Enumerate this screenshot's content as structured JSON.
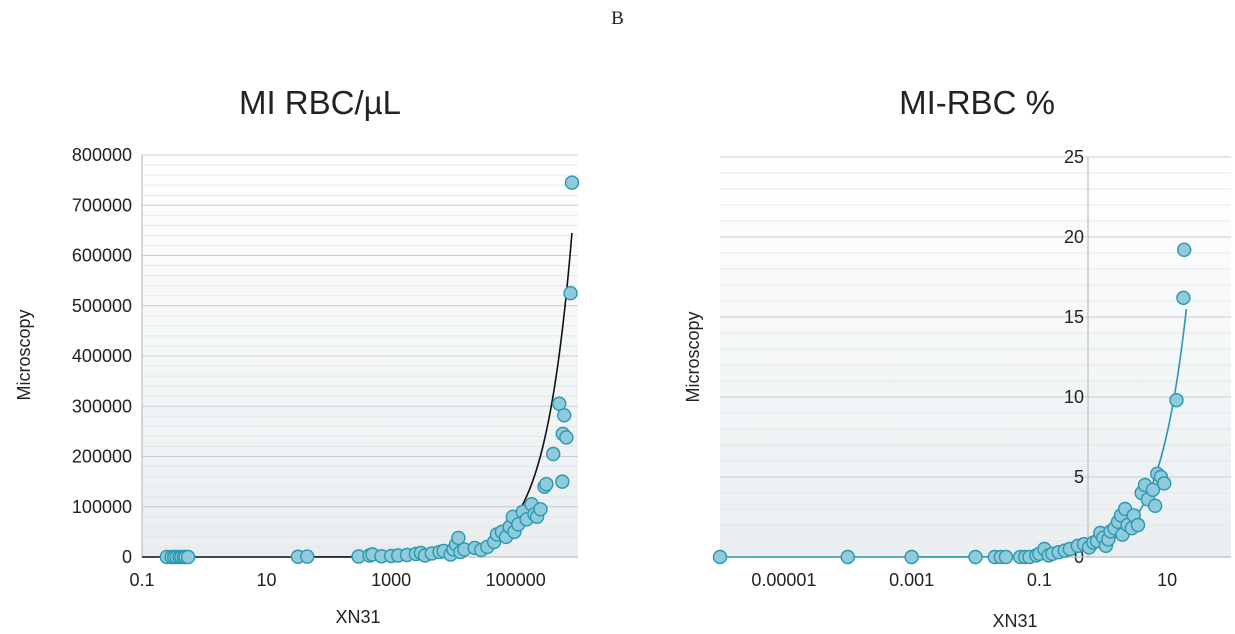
{
  "panel_label": "B",
  "chart_data": [
    {
      "type": "scatter",
      "title": "MI RBC/µL",
      "xlabel": "XN31",
      "ylabel": "Microscopy",
      "x_scale": "log",
      "xlim": [
        0.1,
        1000000
      ],
      "ylim": [
        0,
        800000
      ],
      "x_ticks": [
        0.1,
        10,
        1000,
        100000
      ],
      "x_tick_labels": [
        "0.1",
        "10",
        "1000",
        "100000"
      ],
      "y_ticks": [
        0,
        100000,
        200000,
        300000,
        400000,
        500000,
        600000,
        700000,
        800000
      ],
      "y_tick_labels": [
        "0",
        "100000",
        "200000",
        "300000",
        "400000",
        "500000",
        "600000",
        "700000",
        "800000"
      ],
      "grid": "horizontal",
      "point_color": "#8fcbdb",
      "point_edge_color": "#2a97b0",
      "trend_color": "#111111",
      "trend_type": "linear",
      "points": [
        [
          0.25,
          0
        ],
        [
          0.3,
          0
        ],
        [
          0.33,
          0
        ],
        [
          0.36,
          0
        ],
        [
          0.4,
          0
        ],
        [
          0.43,
          0
        ],
        [
          0.47,
          0
        ],
        [
          0.5,
          0
        ],
        [
          0.55,
          0
        ],
        [
          32,
          500
        ],
        [
          45,
          800
        ],
        [
          300,
          1000
        ],
        [
          450,
          3000
        ],
        [
          500,
          5000
        ],
        [
          700,
          1500
        ],
        [
          1000,
          2000
        ],
        [
          1300,
          3000
        ],
        [
          1800,
          4000
        ],
        [
          2500,
          6000
        ],
        [
          3000,
          8000
        ],
        [
          3500,
          3000
        ],
        [
          4500,
          7000
        ],
        [
          6000,
          10000
        ],
        [
          7000,
          12000
        ],
        [
          9000,
          5000
        ],
        [
          10000,
          15000
        ],
        [
          11000,
          25000
        ],
        [
          12000,
          38000
        ],
        [
          13000,
          10000
        ],
        [
          15000,
          15000
        ],
        [
          22000,
          18000
        ],
        [
          28000,
          14000
        ],
        [
          35000,
          20000
        ],
        [
          45000,
          30000
        ],
        [
          50000,
          45000
        ],
        [
          60000,
          50000
        ],
        [
          70000,
          40000
        ],
        [
          80000,
          60000
        ],
        [
          90000,
          80000
        ],
        [
          95000,
          50000
        ],
        [
          110000,
          65000
        ],
        [
          130000,
          90000
        ],
        [
          150000,
          75000
        ],
        [
          180000,
          105000
        ],
        [
          200000,
          85000
        ],
        [
          220000,
          80000
        ],
        [
          250000,
          95000
        ],
        [
          290000,
          140000
        ],
        [
          310000,
          145000
        ],
        [
          400000,
          205000
        ],
        [
          500000,
          305000
        ],
        [
          560000,
          150000
        ],
        [
          570000,
          245000
        ],
        [
          600000,
          282000
        ],
        [
          650000,
          238000
        ],
        [
          760000,
          525000
        ],
        [
          800000,
          745000
        ]
      ],
      "trend": [
        [
          0.1,
          0
        ],
        [
          800000,
          645000
        ]
      ]
    },
    {
      "type": "scatter",
      "title": "MI-RBC %",
      "xlabel": "XN31",
      "ylabel": "Microscopy",
      "x_scale": "log",
      "xlim": [
        1e-06,
        100
      ],
      "ylim": [
        0,
        25
      ],
      "x_ticks": [
        1e-05,
        0.001,
        0.1,
        10
      ],
      "x_tick_labels": [
        "0.00001",
        "0.001",
        "0.1",
        "10"
      ],
      "y_ticks": [
        0,
        5,
        10,
        15,
        20,
        25
      ],
      "y_tick_labels": [
        "0",
        "5",
        "10",
        "15",
        "20",
        "25"
      ],
      "grid": "horizontal",
      "point_color": "#8fcbdb",
      "point_edge_color": "#2a97b0",
      "trend_color": "#2a97b0",
      "trend_type": "linear",
      "points": [
        [
          1e-06,
          0
        ],
        [
          0.0001,
          0
        ],
        [
          0.001,
          0
        ],
        [
          0.01,
          0
        ],
        [
          0.02,
          0
        ],
        [
          0.025,
          0
        ],
        [
          0.03,
          0
        ],
        [
          0.05,
          0
        ],
        [
          0.06,
          0
        ],
        [
          0.07,
          0
        ],
        [
          0.09,
          0.1
        ],
        [
          0.1,
          0.2
        ],
        [
          0.12,
          0.5
        ],
        [
          0.14,
          0.1
        ],
        [
          0.16,
          0.2
        ],
        [
          0.2,
          0.3
        ],
        [
          0.25,
          0.4
        ],
        [
          0.3,
          0.5
        ],
        [
          0.4,
          0.7
        ],
        [
          0.5,
          0.8
        ],
        [
          0.6,
          0.6
        ],
        [
          0.7,
          0.9
        ],
        [
          0.8,
          1.0
        ],
        [
          0.9,
          1.5
        ],
        [
          1.0,
          1.2
        ],
        [
          1.1,
          0.7
        ],
        [
          1.2,
          1.1
        ],
        [
          1.3,
          1.6
        ],
        [
          1.5,
          1.8
        ],
        [
          1.7,
          2.2
        ],
        [
          1.9,
          2.6
        ],
        [
          2.0,
          1.4
        ],
        [
          2.2,
          3.0
        ],
        [
          2.4,
          2.0
        ],
        [
          2.8,
          1.8
        ],
        [
          3.0,
          2.6
        ],
        [
          3.5,
          2.0
        ],
        [
          4.0,
          4.0
        ],
        [
          4.5,
          4.5
        ],
        [
          5.0,
          3.6
        ],
        [
          6.0,
          4.2
        ],
        [
          6.5,
          3.2
        ],
        [
          7.0,
          5.2
        ],
        [
          8.0,
          5.0
        ],
        [
          9.0,
          4.6
        ],
        [
          14.0,
          9.8
        ],
        [
          18.0,
          16.2
        ],
        [
          18.5,
          19.2
        ]
      ],
      "trend": [
        [
          1e-06,
          0
        ],
        [
          20,
          15.5
        ]
      ]
    }
  ]
}
